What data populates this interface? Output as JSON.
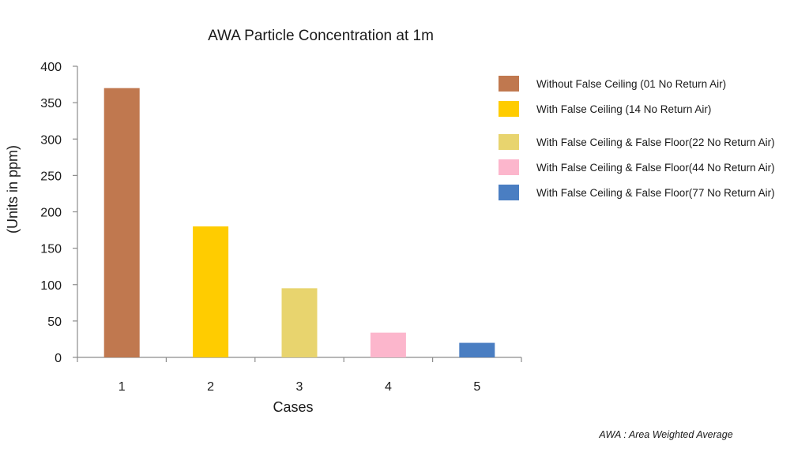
{
  "chart_data": {
    "type": "bar",
    "title": "AWA Particle Concentration at 1m",
    "xlabel": "Cases",
    "ylabel": "(Units in ppm)",
    "categories": [
      "1",
      "2",
      "3",
      "4",
      "5"
    ],
    "values": [
      370,
      180,
      95,
      34,
      20
    ],
    "colors": [
      "#C0784F",
      "#FFCC00",
      "#E8D46E",
      "#FCB6CC",
      "#4A7EC2"
    ],
    "ylim": [
      0,
      400
    ],
    "yticks": [
      0,
      50,
      100,
      150,
      200,
      250,
      300,
      350,
      400
    ],
    "grid": false,
    "legend_position": "right",
    "legend": [
      "Without False Ceiling (01 No Return Air)",
      "With False Ceiling (14 No Return Air)",
      "With False Ceiling & False Floor(22 No Return Air)",
      "With False Ceiling & False Floor(44 No Return Air)",
      "With False Ceiling & False Floor(77 No Return Air)"
    ],
    "footnote": "AWA : Area Weighted Average"
  }
}
